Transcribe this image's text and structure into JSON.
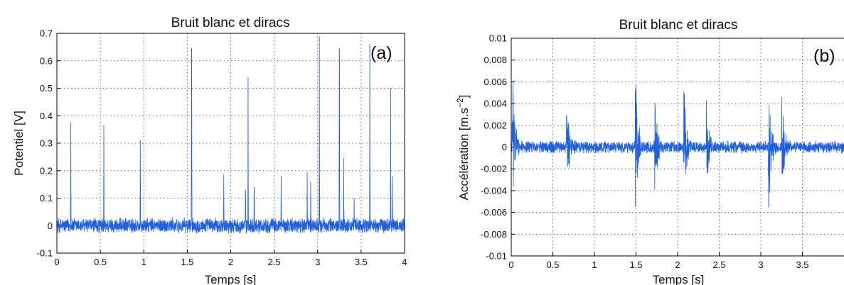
{
  "chart_data": [
    {
      "type": "line",
      "title": "Bruit blanc et diracs",
      "panel_label": "(a)",
      "xlabel": "Temps [s]",
      "ylabel": "Potentiel [V]",
      "xlim": [
        0,
        4
      ],
      "ylim": [
        -0.1,
        0.7
      ],
      "xticks": [
        "0",
        "0.5",
        "1",
        "1.5",
        "2",
        "2.5",
        "3",
        "3.5",
        "4"
      ],
      "yticks": [
        "-0.1",
        "0",
        "0.1",
        "0.2",
        "0.3",
        "0.4",
        "0.5",
        "0.6",
        "0.7"
      ],
      "grid": true,
      "color": "#1f5fe0",
      "noise_amplitude": 0.03,
      "spikes": [
        {
          "t": 0.16,
          "v": 0.375
        },
        {
          "t": 0.54,
          "v": 0.365
        },
        {
          "t": 0.96,
          "v": 0.31
        },
        {
          "t": 1.55,
          "v": 0.645
        },
        {
          "t": 1.92,
          "v": 0.185
        },
        {
          "t": 2.17,
          "v": 0.13
        },
        {
          "t": 2.2,
          "v": 0.54
        },
        {
          "t": 2.27,
          "v": 0.14
        },
        {
          "t": 2.58,
          "v": 0.18
        },
        {
          "t": 2.88,
          "v": 0.195
        },
        {
          "t": 2.92,
          "v": 0.16
        },
        {
          "t": 3.02,
          "v": 0.69
        },
        {
          "t": 3.25,
          "v": 0.645
        },
        {
          "t": 3.3,
          "v": 0.245
        },
        {
          "t": 3.42,
          "v": 0.1
        },
        {
          "t": 3.6,
          "v": 0.66
        },
        {
          "t": 3.84,
          "v": 0.5
        },
        {
          "t": 3.86,
          "v": 0.18
        }
      ]
    },
    {
      "type": "line",
      "title": "Bruit blanc et diracs",
      "panel_label": "(b)",
      "xlabel": "Temps [s]",
      "ylabel": "Accélération [m.s",
      "ylabel_exponent": "−2",
      "ylabel_close": "]",
      "xlim": [
        0,
        4
      ],
      "ylim": [
        -0.01,
        0.01
      ],
      "xticks": [
        "0",
        "0.5",
        "1",
        "1.5",
        "2",
        "2.5",
        "3",
        "3.5"
      ],
      "yticks": [
        "-0.01",
        "-0.008",
        "-0.006",
        "-0.004",
        "-0.002",
        "0",
        "0.002",
        "0.004",
        "0.006",
        "0.008",
        "0.01"
      ],
      "grid": true,
      "color": "#1f5fe0",
      "noise_amplitude": 0.0006,
      "bursts": [
        {
          "t": 0.02,
          "v": 0.0065,
          "neg": -0.005
        },
        {
          "t": 0.67,
          "v": 0.0053,
          "neg": -0.0042
        },
        {
          "t": 1.5,
          "v": 0.0066,
          "neg": -0.0057
        },
        {
          "t": 1.73,
          "v": 0.0046,
          "neg": -0.0052
        },
        {
          "t": 2.08,
          "v": 0.006,
          "neg": -0.0055
        },
        {
          "t": 2.35,
          "v": 0.0046,
          "neg": -0.0046
        },
        {
          "t": 3.1,
          "v": 0.0066,
          "neg": -0.0061
        },
        {
          "t": 3.26,
          "v": 0.0046,
          "neg": -0.0042
        }
      ]
    }
  ]
}
